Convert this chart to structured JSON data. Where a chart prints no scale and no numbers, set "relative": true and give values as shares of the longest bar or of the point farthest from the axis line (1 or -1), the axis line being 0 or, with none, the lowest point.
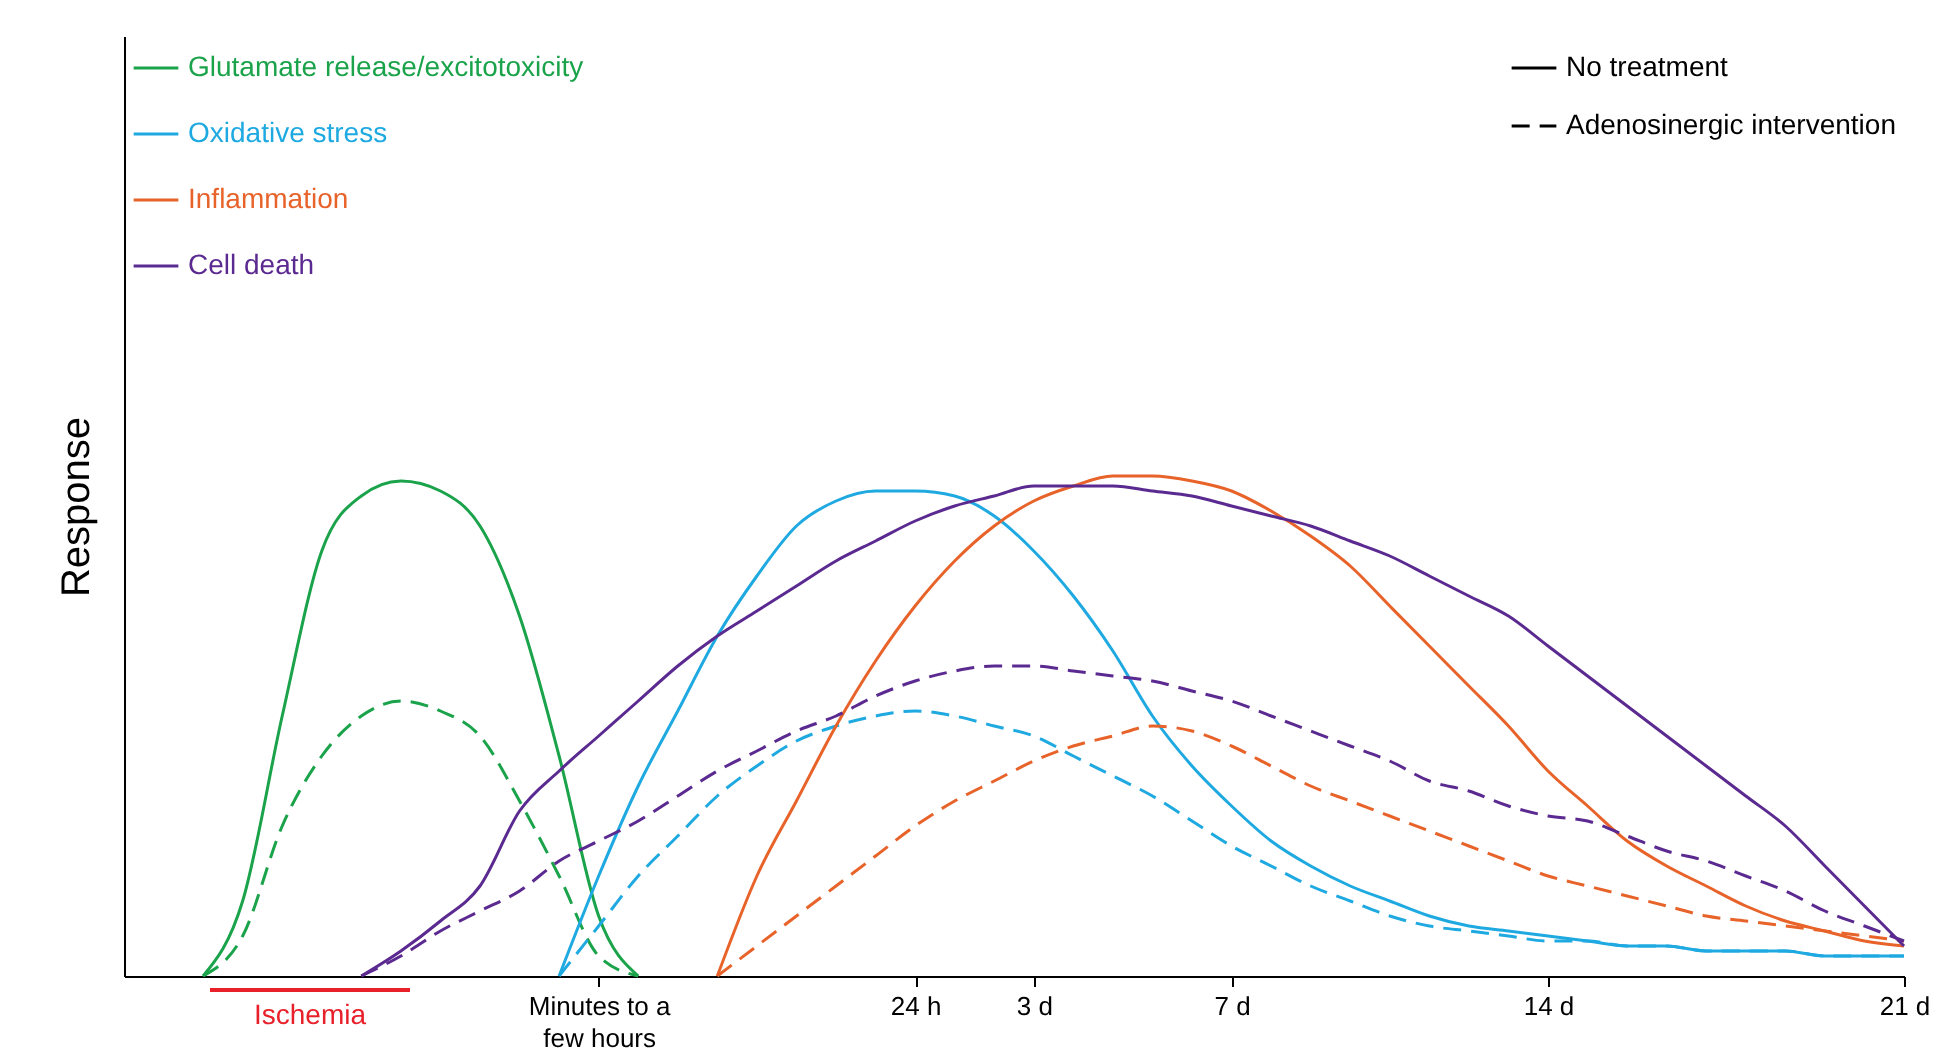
{
  "chart_data": {
    "type": "line",
    "relative": true,
    "ylabel": "Response",
    "legend": "top left",
    "grid": false,
    "categories": [
      null,
      null,
      null,
      null,
      null,
      null,
      null,
      null,
      null,
      null,
      null,
      null,
      "Minutes to a few hours",
      null,
      null,
      null,
      null,
      null,
      null,
      null,
      "24 h",
      null,
      null,
      "3 d",
      null,
      null,
      null,
      null,
      "7 d",
      null,
      null,
      null,
      null,
      null,
      null,
      null,
      "14 d",
      null,
      null,
      null,
      null,
      null,
      null,
      null,
      null,
      "21 d"
    ],
    "annotations": [
      "No treatment",
      "Adenosinergic intervention",
      "Ischemia"
    ],
    "series": [
      {
        "name": "Glutamate release/excitotoxicity",
        "color": "#1aa34a",
        "line_style": "solid",
        "values": [
          null,
          null,
          0,
          0.15,
          0.52,
          0.85,
          0.96,
          0.99,
          0.97,
          0.9,
          0.72,
          0.44,
          0.12,
          0,
          null,
          null,
          null,
          null,
          null,
          null,
          null,
          null,
          null,
          null,
          null,
          null,
          null,
          null,
          null,
          null,
          null,
          null,
          null,
          null,
          null,
          null,
          null,
          null,
          null,
          null,
          null,
          null,
          null,
          null,
          null,
          null
        ]
      },
      {
        "color": "#1aa34a",
        "line_style": "dashed",
        "values": [
          null,
          null,
          0,
          0.08,
          0.3,
          0.44,
          0.52,
          0.55,
          0.53,
          0.48,
          0.35,
          0.2,
          0.04,
          0,
          null,
          null,
          null,
          null,
          null,
          null,
          null,
          null,
          null,
          null,
          null,
          null,
          null,
          null,
          null,
          null,
          null,
          null,
          null,
          null,
          null,
          null,
          null,
          null,
          null,
          null,
          null,
          null,
          null,
          null,
          null,
          null
        ]
      },
      {
        "name": "Oxidative stress",
        "color": "#1fa9e1",
        "line_style": "solid",
        "values": [
          null,
          null,
          null,
          null,
          null,
          null,
          null,
          null,
          null,
          null,
          null,
          0,
          0.2,
          0.38,
          0.53,
          0.68,
          0.8,
          0.9,
          0.95,
          0.97,
          0.97,
          0.96,
          0.92,
          0.85,
          0.76,
          0.65,
          0.52,
          0.42,
          0.34,
          0.27,
          0.22,
          0.18,
          0.15,
          0.12,
          0.1,
          0.09,
          0.08,
          0.07,
          0.06,
          0.06,
          0.05,
          0.05,
          0.05,
          0.04,
          0.04,
          0.04
        ]
      },
      {
        "color": "#1fa9e1",
        "line_style": "dashed",
        "values": [
          null,
          null,
          null,
          null,
          null,
          null,
          null,
          null,
          null,
          null,
          null,
          0,
          0.1,
          0.2,
          0.28,
          0.36,
          0.42,
          0.47,
          0.5,
          0.52,
          0.53,
          0.52,
          0.5,
          0.48,
          0.44,
          0.4,
          0.36,
          0.31,
          0.26,
          0.22,
          0.18,
          0.15,
          0.12,
          0.1,
          0.09,
          0.08,
          0.07,
          0.07,
          0.06,
          0.06,
          0.05,
          0.05,
          0.05,
          0.04,
          0.04,
          0.04
        ]
      },
      {
        "name": "Inflammation",
        "color": "#e8632a",
        "line_style": "solid",
        "values": [
          null,
          null,
          null,
          null,
          null,
          null,
          null,
          null,
          null,
          null,
          null,
          null,
          null,
          null,
          null,
          0,
          0.2,
          0.35,
          0.5,
          0.63,
          0.74,
          0.83,
          0.9,
          0.95,
          0.98,
          1,
          1,
          0.99,
          0.97,
          0.93,
          0.88,
          0.82,
          0.74,
          0.66,
          0.58,
          0.5,
          0.41,
          0.34,
          0.27,
          0.22,
          0.18,
          0.14,
          0.11,
          0.09,
          0.07,
          0.06
        ]
      },
      {
        "color": "#e8632a",
        "line_style": "dashed",
        "values": [
          null,
          null,
          null,
          null,
          null,
          null,
          null,
          null,
          null,
          null,
          null,
          null,
          null,
          null,
          null,
          0,
          0.06,
          0.12,
          0.18,
          0.24,
          0.3,
          0.35,
          0.39,
          0.43,
          0.46,
          0.48,
          0.5,
          0.49,
          0.46,
          0.42,
          0.38,
          0.35,
          0.32,
          0.29,
          0.26,
          0.23,
          0.2,
          0.18,
          0.16,
          0.14,
          0.12,
          0.11,
          0.1,
          0.09,
          0.08,
          0.07
        ]
      },
      {
        "name": "Cell death",
        "color": "#5b2a91",
        "line_style": "solid",
        "values": [
          null,
          null,
          null,
          null,
          null,
          null,
          0,
          0.05,
          0.11,
          0.18,
          0.33,
          0.41,
          0.48,
          0.55,
          0.62,
          0.68,
          0.73,
          0.78,
          0.83,
          0.87,
          0.91,
          0.94,
          0.96,
          0.98,
          0.98,
          0.98,
          0.97,
          0.96,
          0.94,
          0.92,
          0.9,
          0.87,
          0.84,
          0.8,
          0.76,
          0.72,
          0.66,
          0.6,
          0.54,
          0.48,
          0.42,
          0.36,
          0.3,
          0.22,
          0.14,
          0.06
        ]
      },
      {
        "color": "#5b2a91",
        "line_style": "dashed",
        "values": [
          null,
          null,
          null,
          null,
          null,
          null,
          0,
          0.04,
          0.09,
          0.13,
          0.17,
          0.23,
          0.27,
          0.31,
          0.36,
          0.41,
          0.45,
          0.49,
          0.52,
          0.56,
          0.59,
          0.61,
          0.62,
          0.62,
          0.61,
          0.6,
          0.59,
          0.57,
          0.55,
          0.52,
          0.49,
          0.46,
          0.43,
          0.39,
          0.37,
          0.34,
          0.32,
          0.31,
          0.28,
          0.25,
          0.23,
          0.2,
          0.17,
          0.13,
          0.1,
          0.07
        ]
      }
    ]
  }
}
